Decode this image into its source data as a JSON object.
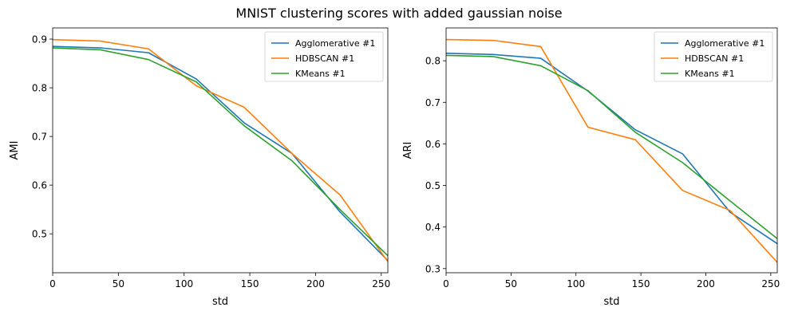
{
  "figure_title": "MNIST clustering scores with added gaussian noise",
  "chart_data": [
    {
      "type": "line",
      "title": "",
      "xlabel": "std",
      "ylabel": "AMI",
      "xlim": [
        0,
        255
      ],
      "ylim": [
        0.42,
        0.923
      ],
      "xticks": [
        0,
        50,
        100,
        150,
        200,
        250
      ],
      "yticks": [
        0.5,
        0.6,
        0.7,
        0.8,
        0.9
      ],
      "grid": false,
      "legend_position": "top-right",
      "x": [
        0,
        36.4,
        72.9,
        109.3,
        145.7,
        182.1,
        218.6,
        255
      ],
      "series": [
        {
          "name": "Agglomerative #1",
          "color": "#1f77b4",
          "values": [
            0.885,
            0.882,
            0.872,
            0.818,
            0.728,
            0.665,
            0.545,
            0.445
          ]
        },
        {
          "name": "HDBSCAN #1",
          "color": "#ff7f0e",
          "values": [
            0.899,
            0.896,
            0.88,
            0.804,
            0.76,
            0.665,
            0.58,
            0.443
          ]
        },
        {
          "name": "KMeans #1",
          "color": "#2ca02c",
          "values": [
            0.882,
            0.878,
            0.858,
            0.812,
            0.722,
            0.65,
            0.55,
            0.455
          ]
        }
      ]
    },
    {
      "type": "line",
      "title": "",
      "xlabel": "std",
      "ylabel": "ARI",
      "xlim": [
        0,
        255
      ],
      "ylim": [
        0.29,
        0.879
      ],
      "xticks": [
        0,
        50,
        100,
        150,
        200,
        250
      ],
      "yticks": [
        0.3,
        0.4,
        0.5,
        0.6,
        0.7,
        0.8
      ],
      "grid": false,
      "legend_position": "top-right",
      "x": [
        0,
        36.4,
        72.9,
        109.3,
        145.7,
        182.1,
        218.6,
        255
      ],
      "series": [
        {
          "name": "Agglomerative #1",
          "color": "#1f77b4",
          "values": [
            0.818,
            0.815,
            0.806,
            0.727,
            0.634,
            0.576,
            0.436,
            0.36
          ]
        },
        {
          "name": "HDBSCAN #1",
          "color": "#ff7f0e",
          "values": [
            0.851,
            0.849,
            0.834,
            0.64,
            0.61,
            0.488,
            0.44,
            0.315
          ]
        },
        {
          "name": "KMeans #1",
          "color": "#2ca02c",
          "values": [
            0.813,
            0.81,
            0.788,
            0.728,
            0.628,
            0.555,
            0.463,
            0.372
          ]
        }
      ]
    }
  ]
}
